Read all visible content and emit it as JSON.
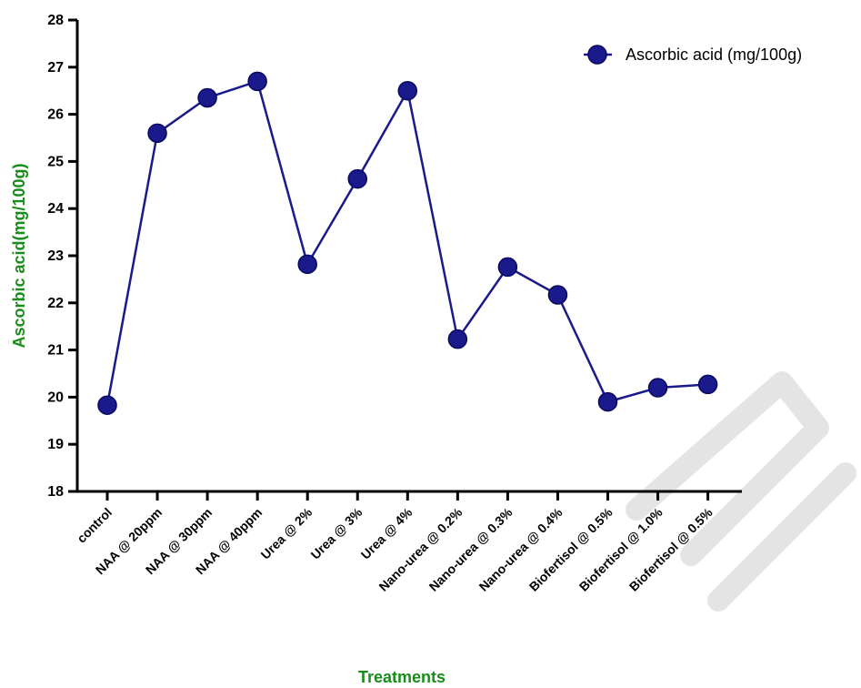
{
  "chart_data": {
    "type": "line",
    "categories": [
      "control",
      "NAA @ 20ppm",
      "NAA @ 30ppm",
      "NAA @ 40ppm",
      "Urea @ 2%",
      "Urea @ 3%",
      "Urea @ 4%",
      "Nano-urea @ 0.2%",
      "Nano-urea @ 0.3%",
      "Nano-urea @ 0.4%",
      "Biofertisol @ 0.5%",
      "Biofertisol @ 1.0%",
      "Biofertisol @ 0.5%"
    ],
    "series": [
      {
        "name": "Ascorbic acid (mg/100g)",
        "values": [
          19.83,
          25.6,
          26.35,
          26.7,
          22.82,
          24.63,
          26.5,
          21.23,
          22.76,
          22.17,
          19.9,
          20.2,
          20.27
        ],
        "color": "#1a1a8c"
      }
    ],
    "xlabel": "Treatments",
    "ylabel": "Ascorbic acid(mg/100g)",
    "ylim": [
      18,
      28
    ],
    "yticks": [
      "18",
      "19",
      "20",
      "21",
      "22",
      "23",
      "24",
      "25",
      "26",
      "27",
      "28"
    ],
    "grid": false,
    "legend_position": "top-right",
    "axis_label_color": "#1a8c1a"
  }
}
